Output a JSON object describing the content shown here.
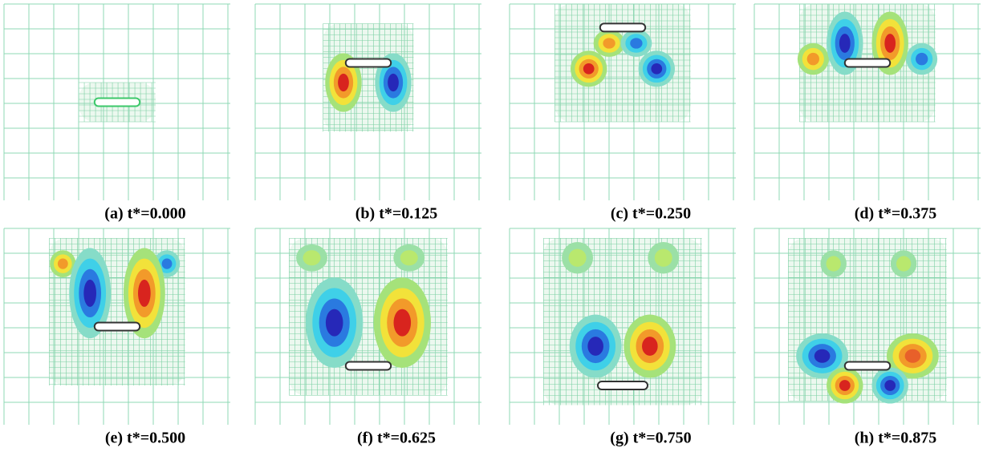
{
  "panels": [
    {
      "caption": "(a) t*=0.000"
    },
    {
      "caption": "(b) t*=0.125"
    },
    {
      "caption": "(c) t*=0.250"
    },
    {
      "caption": "(d) t*=0.375"
    },
    {
      "caption": "(e) t*=0.500"
    },
    {
      "caption": "(f) t*=0.625"
    },
    {
      "caption": "(g) t*=0.750"
    },
    {
      "caption": "(h) t*=0.875"
    }
  ]
}
